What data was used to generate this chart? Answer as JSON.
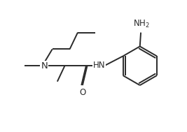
{
  "background_color": "#ffffff",
  "line_color": "#2a2a2a",
  "line_width": 1.4,
  "font_size": 8.5,
  "fig_width": 2.67,
  "fig_height": 1.89,
  "dpi": 100,
  "xlim": [
    0,
    10
  ],
  "ylim": [
    0,
    7.08
  ]
}
